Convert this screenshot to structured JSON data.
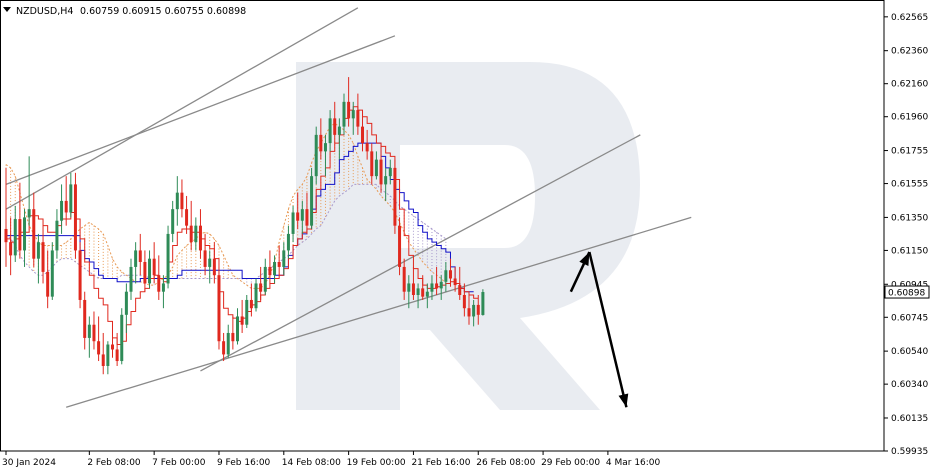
{
  "header": {
    "symbol_label": "NZDUSD,H4",
    "ohlc_label": "0.60759 0.60915 0.60755 0.60898"
  },
  "watermark": {
    "letter": "R",
    "color": "#d7dce6"
  },
  "colors": {
    "bull": "#2e8b57",
    "bear": "#e0281e",
    "tenkan": "#e0281e",
    "kijun": "#1010c8",
    "cloud_a": "#e89a55",
    "cloud_b": "#a899cc",
    "trend": "#8a8a8a",
    "arrow": "#000000",
    "price_tag_bg": "#ffffff"
  },
  "chart_data": {
    "type": "candlestick",
    "title": "NZDUSD,H4",
    "y_axis": {
      "ticks": [
        0.62565,
        0.6236,
        0.6216,
        0.6196,
        0.61755,
        0.61555,
        0.6135,
        0.6115,
        0.60945,
        0.60745,
        0.6054,
        0.6034,
        0.60135,
        0.59935
      ],
      "tick_labels": [
        "0.62565",
        "0.62360",
        "0.62160",
        "0.61960",
        "0.61755",
        "0.61555",
        "0.61350",
        "0.61150",
        "0.60945",
        "0.60745",
        "0.60540",
        "0.60340",
        "0.60135",
        "0.59935"
      ],
      "ylim": [
        0.59935,
        0.62667
      ],
      "current_price": 0.60898,
      "current_price_label": "0.60898"
    },
    "x_axis": {
      "tick_labels": [
        "30 Jan 2024",
        "2 Feb 08:00",
        "7 Feb 00:00",
        "9 Feb 16:00",
        "14 Feb 08:00",
        "19 Feb 00:00",
        "21 Feb 16:00",
        "26 Feb 08:00",
        "29 Feb 00:00",
        "4 Mar 16:00"
      ],
      "tick_bar_index": [
        0,
        18,
        32,
        46,
        60,
        74,
        88,
        102,
        116,
        130
      ]
    },
    "candles": [
      {
        "o": 0.6128,
        "h": 0.6165,
        "l": 0.6105,
        "c": 0.612
      },
      {
        "o": 0.612,
        "h": 0.6135,
        "l": 0.61,
        "c": 0.6112
      },
      {
        "o": 0.6112,
        "h": 0.6142,
        "l": 0.6108,
        "c": 0.6134
      },
      {
        "o": 0.6134,
        "h": 0.6156,
        "l": 0.611,
        "c": 0.6115
      },
      {
        "o": 0.6115,
        "h": 0.614,
        "l": 0.6105,
        "c": 0.6135
      },
      {
        "o": 0.6135,
        "h": 0.6172,
        "l": 0.613,
        "c": 0.614
      },
      {
        "o": 0.614,
        "h": 0.615,
        "l": 0.6105,
        "c": 0.611
      },
      {
        "o": 0.611,
        "h": 0.6125,
        "l": 0.6095,
        "c": 0.612
      },
      {
        "o": 0.612,
        "h": 0.613,
        "l": 0.6095,
        "c": 0.6102
      },
      {
        "o": 0.6102,
        "h": 0.6115,
        "l": 0.608,
        "c": 0.6087
      },
      {
        "o": 0.6087,
        "h": 0.612,
        "l": 0.6085,
        "c": 0.6115
      },
      {
        "o": 0.6115,
        "h": 0.614,
        "l": 0.611,
        "c": 0.6133
      },
      {
        "o": 0.6133,
        "h": 0.6155,
        "l": 0.6125,
        "c": 0.6145
      },
      {
        "o": 0.6145,
        "h": 0.616,
        "l": 0.613,
        "c": 0.6138
      },
      {
        "o": 0.6138,
        "h": 0.6162,
        "l": 0.6135,
        "c": 0.6155
      },
      {
        "o": 0.6155,
        "h": 0.6162,
        "l": 0.611,
        "c": 0.6115
      },
      {
        "o": 0.6115,
        "h": 0.612,
        "l": 0.608,
        "c": 0.6085
      },
      {
        "o": 0.6085,
        "h": 0.609,
        "l": 0.6055,
        "c": 0.6062
      },
      {
        "o": 0.6062,
        "h": 0.6075,
        "l": 0.605,
        "c": 0.607
      },
      {
        "o": 0.607,
        "h": 0.6078,
        "l": 0.6055,
        "c": 0.606
      },
      {
        "o": 0.606,
        "h": 0.6075,
        "l": 0.6048,
        "c": 0.6052
      },
      {
        "o": 0.6052,
        "h": 0.6065,
        "l": 0.604,
        "c": 0.6045
      },
      {
        "o": 0.6045,
        "h": 0.606,
        "l": 0.604,
        "c": 0.6058
      },
      {
        "o": 0.6058,
        "h": 0.607,
        "l": 0.605,
        "c": 0.6055
      },
      {
        "o": 0.6055,
        "h": 0.6065,
        "l": 0.6045,
        "c": 0.6048
      },
      {
        "o": 0.6048,
        "h": 0.608,
        "l": 0.6046,
        "c": 0.6076
      },
      {
        "o": 0.6076,
        "h": 0.6095,
        "l": 0.6065,
        "c": 0.609
      },
      {
        "o": 0.609,
        "h": 0.611,
        "l": 0.6085,
        "c": 0.6105
      },
      {
        "o": 0.6105,
        "h": 0.612,
        "l": 0.6095,
        "c": 0.6115
      },
      {
        "o": 0.6115,
        "h": 0.6125,
        "l": 0.61,
        "c": 0.6108
      },
      {
        "o": 0.6108,
        "h": 0.6115,
        "l": 0.609,
        "c": 0.6095
      },
      {
        "o": 0.6095,
        "h": 0.6115,
        "l": 0.6092,
        "c": 0.611
      },
      {
        "o": 0.611,
        "h": 0.612,
        "l": 0.6095,
        "c": 0.61
      },
      {
        "o": 0.61,
        "h": 0.6112,
        "l": 0.6085,
        "c": 0.609
      },
      {
        "o": 0.609,
        "h": 0.61,
        "l": 0.608,
        "c": 0.6095
      },
      {
        "o": 0.6095,
        "h": 0.613,
        "l": 0.6092,
        "c": 0.6125
      },
      {
        "o": 0.6125,
        "h": 0.6145,
        "l": 0.612,
        "c": 0.614
      },
      {
        "o": 0.614,
        "h": 0.616,
        "l": 0.613,
        "c": 0.615
      },
      {
        "o": 0.615,
        "h": 0.6158,
        "l": 0.6135,
        "c": 0.614
      },
      {
        "o": 0.614,
        "h": 0.6148,
        "l": 0.6125,
        "c": 0.613
      },
      {
        "o": 0.613,
        "h": 0.6145,
        "l": 0.6115,
        "c": 0.612
      },
      {
        "o": 0.612,
        "h": 0.6135,
        "l": 0.6115,
        "c": 0.613
      },
      {
        "o": 0.613,
        "h": 0.614,
        "l": 0.611,
        "c": 0.6115
      },
      {
        "o": 0.6115,
        "h": 0.6125,
        "l": 0.61,
        "c": 0.6105
      },
      {
        "o": 0.6105,
        "h": 0.6115,
        "l": 0.6095,
        "c": 0.611
      },
      {
        "o": 0.611,
        "h": 0.612,
        "l": 0.6095,
        "c": 0.61
      },
      {
        "o": 0.61,
        "h": 0.6105,
        "l": 0.6055,
        "c": 0.606
      },
      {
        "o": 0.606,
        "h": 0.6065,
        "l": 0.6048,
        "c": 0.6052
      },
      {
        "o": 0.6052,
        "h": 0.607,
        "l": 0.605,
        "c": 0.6065
      },
      {
        "o": 0.6065,
        "h": 0.6075,
        "l": 0.6055,
        "c": 0.606
      },
      {
        "o": 0.606,
        "h": 0.608,
        "l": 0.6058,
        "c": 0.6075
      },
      {
        "o": 0.6075,
        "h": 0.6085,
        "l": 0.6065,
        "c": 0.607
      },
      {
        "o": 0.607,
        "h": 0.6088,
        "l": 0.6068,
        "c": 0.6085
      },
      {
        "o": 0.6085,
        "h": 0.6095,
        "l": 0.6075,
        "c": 0.608
      },
      {
        "o": 0.608,
        "h": 0.6098,
        "l": 0.6078,
        "c": 0.6095
      },
      {
        "o": 0.6095,
        "h": 0.6105,
        "l": 0.6085,
        "c": 0.609
      },
      {
        "o": 0.609,
        "h": 0.611,
        "l": 0.6088,
        "c": 0.6105
      },
      {
        "o": 0.6105,
        "h": 0.6115,
        "l": 0.6095,
        "c": 0.61
      },
      {
        "o": 0.61,
        "h": 0.6112,
        "l": 0.6095,
        "c": 0.6108
      },
      {
        "o": 0.6108,
        "h": 0.6118,
        "l": 0.61,
        "c": 0.6105
      },
      {
        "o": 0.6105,
        "h": 0.612,
        "l": 0.61,
        "c": 0.6115
      },
      {
        "o": 0.6115,
        "h": 0.613,
        "l": 0.611,
        "c": 0.6125
      },
      {
        "o": 0.6125,
        "h": 0.6142,
        "l": 0.612,
        "c": 0.6138
      },
      {
        "o": 0.6138,
        "h": 0.615,
        "l": 0.6128,
        "c": 0.6133
      },
      {
        "o": 0.6133,
        "h": 0.6145,
        "l": 0.6125,
        "c": 0.614
      },
      {
        "o": 0.614,
        "h": 0.615,
        "l": 0.6125,
        "c": 0.613
      },
      {
        "o": 0.613,
        "h": 0.6165,
        "l": 0.6128,
        "c": 0.616
      },
      {
        "o": 0.616,
        "h": 0.619,
        "l": 0.6155,
        "c": 0.6185
      },
      {
        "o": 0.6185,
        "h": 0.6195,
        "l": 0.617,
        "c": 0.6175
      },
      {
        "o": 0.6175,
        "h": 0.6185,
        "l": 0.616,
        "c": 0.618
      },
      {
        "o": 0.618,
        "h": 0.62,
        "l": 0.6175,
        "c": 0.6195
      },
      {
        "o": 0.6195,
        "h": 0.6205,
        "l": 0.618,
        "c": 0.6185
      },
      {
        "o": 0.6185,
        "h": 0.6195,
        "l": 0.617,
        "c": 0.619
      },
      {
        "o": 0.619,
        "h": 0.621,
        "l": 0.6185,
        "c": 0.6205
      },
      {
        "o": 0.6205,
        "h": 0.622,
        "l": 0.619,
        "c": 0.6195
      },
      {
        "o": 0.6195,
        "h": 0.6205,
        "l": 0.6185,
        "c": 0.62
      },
      {
        "o": 0.62,
        "h": 0.621,
        "l": 0.6185,
        "c": 0.619
      },
      {
        "o": 0.619,
        "h": 0.62,
        "l": 0.6175,
        "c": 0.618
      },
      {
        "o": 0.618,
        "h": 0.6188,
        "l": 0.617,
        "c": 0.6175
      },
      {
        "o": 0.6175,
        "h": 0.618,
        "l": 0.6155,
        "c": 0.616
      },
      {
        "o": 0.616,
        "h": 0.6175,
        "l": 0.6158,
        "c": 0.617
      },
      {
        "o": 0.617,
        "h": 0.618,
        "l": 0.615,
        "c": 0.6155
      },
      {
        "o": 0.6155,
        "h": 0.6165,
        "l": 0.6145,
        "c": 0.616
      },
      {
        "o": 0.616,
        "h": 0.617,
        "l": 0.6155,
        "c": 0.6165
      },
      {
        "o": 0.6165,
        "h": 0.617,
        "l": 0.6125,
        "c": 0.613
      },
      {
        "o": 0.613,
        "h": 0.6135,
        "l": 0.61,
        "c": 0.6105
      },
      {
        "o": 0.6105,
        "h": 0.611,
        "l": 0.6085,
        "c": 0.609
      },
      {
        "o": 0.609,
        "h": 0.61,
        "l": 0.608,
        "c": 0.6095
      },
      {
        "o": 0.6095,
        "h": 0.6105,
        "l": 0.6085,
        "c": 0.6088
      },
      {
        "o": 0.6088,
        "h": 0.6095,
        "l": 0.608,
        "c": 0.6092
      },
      {
        "o": 0.6092,
        "h": 0.61,
        "l": 0.6085,
        "c": 0.6087
      },
      {
        "o": 0.6087,
        "h": 0.6095,
        "l": 0.608,
        "c": 0.609
      },
      {
        "o": 0.609,
        "h": 0.61,
        "l": 0.6085,
        "c": 0.6095
      },
      {
        "o": 0.6095,
        "h": 0.6105,
        "l": 0.6088,
        "c": 0.6092
      },
      {
        "o": 0.6092,
        "h": 0.61,
        "l": 0.6085,
        "c": 0.6096
      },
      {
        "o": 0.6096,
        "h": 0.6108,
        "l": 0.609,
        "c": 0.6103
      },
      {
        "o": 0.6103,
        "h": 0.611,
        "l": 0.6093,
        "c": 0.6098
      },
      {
        "o": 0.6098,
        "h": 0.6105,
        "l": 0.609,
        "c": 0.6094
      },
      {
        "o": 0.6094,
        "h": 0.6105,
        "l": 0.6085,
        "c": 0.6088
      },
      {
        "o": 0.6088,
        "h": 0.6095,
        "l": 0.6075,
        "c": 0.608
      },
      {
        "o": 0.608,
        "h": 0.609,
        "l": 0.607,
        "c": 0.6075
      },
      {
        "o": 0.6075,
        "h": 0.6085,
        "l": 0.6069,
        "c": 0.6082
      },
      {
        "o": 0.6082,
        "h": 0.6088,
        "l": 0.607,
        "c": 0.6076
      },
      {
        "o": 0.60759,
        "h": 0.60915,
        "l": 0.60755,
        "c": 0.60898
      }
    ],
    "tenkan": [
      0.6122,
      0.612,
      0.6122,
      0.6126,
      0.6126,
      0.6136,
      0.6136,
      0.6134,
      0.613,
      0.6126,
      0.6126,
      0.613,
      0.6134,
      0.6134,
      0.6138,
      0.6134,
      0.6122,
      0.6108,
      0.61,
      0.6092,
      0.6086,
      0.6082,
      0.6072,
      0.6062,
      0.6058,
      0.606,
      0.607,
      0.6078,
      0.6086,
      0.609,
      0.6092,
      0.6098,
      0.61,
      0.6098,
      0.6096,
      0.6108,
      0.6118,
      0.6126,
      0.6128,
      0.6128,
      0.6126,
      0.6126,
      0.6122,
      0.6118,
      0.6116,
      0.611,
      0.609,
      0.608,
      0.6076,
      0.6074,
      0.6072,
      0.6074,
      0.6078,
      0.6082,
      0.6084,
      0.6088,
      0.6092,
      0.6095,
      0.6098,
      0.61,
      0.6104,
      0.611,
      0.6118,
      0.6122,
      0.6126,
      0.6128,
      0.6138,
      0.6152,
      0.616,
      0.6165,
      0.6175,
      0.618,
      0.6185,
      0.6195,
      0.62,
      0.6202,
      0.62,
      0.6196,
      0.6192,
      0.6185,
      0.618,
      0.6178,
      0.6174,
      0.6172,
      0.6158,
      0.614,
      0.6124,
      0.6112,
      0.6104,
      0.6098,
      0.6094,
      0.6092,
      0.6092,
      0.6093,
      0.6094,
      0.6095,
      0.6096,
      0.6095,
      0.6092,
      0.609,
      0.6088,
      0.6086,
      0.6086
    ],
    "kijun": [
      0.6124,
      0.6124,
      0.6124,
      0.6124,
      0.6124,
      0.6124,
      0.6124,
      0.6124,
      0.6124,
      0.6124,
      0.6124,
      0.6124,
      0.6124,
      0.6124,
      0.6124,
      0.6124,
      0.6115,
      0.611,
      0.6108,
      0.6104,
      0.61,
      0.6098,
      0.6098,
      0.6098,
      0.6096,
      0.6096,
      0.6096,
      0.6096,
      0.6096,
      0.6098,
      0.6098,
      0.6098,
      0.6098,
      0.6098,
      0.6098,
      0.6098,
      0.6098,
      0.61,
      0.6103,
      0.6103,
      0.6103,
      0.6103,
      0.6103,
      0.6103,
      0.6103,
      0.6103,
      0.6103,
      0.6103,
      0.6103,
      0.6103,
      0.6103,
      0.6098,
      0.6098,
      0.6098,
      0.6098,
      0.6098,
      0.6098,
      0.6098,
      0.61,
      0.61,
      0.6105,
      0.6112,
      0.6118,
      0.6122,
      0.6125,
      0.6128,
      0.614,
      0.6148,
      0.6152,
      0.6155,
      0.6155,
      0.6162,
      0.617,
      0.6172,
      0.6175,
      0.6178,
      0.618,
      0.618,
      0.618,
      0.618,
      0.618,
      0.6172,
      0.6165,
      0.6158,
      0.6152,
      0.615,
      0.6145,
      0.614,
      0.6138,
      0.613,
      0.6126,
      0.6122,
      0.612,
      0.6118,
      0.6116,
      0.6114,
      0.6105,
      0.6095,
      0.6092,
      0.609,
      0.609,
      0.609
    ],
    "cloud": {
      "x_start": 0,
      "span_a": [
        0.6167,
        0.6165,
        0.616,
        0.615,
        0.614,
        0.613,
        0.6125,
        0.612,
        0.6118,
        0.6118,
        0.6118,
        0.6118,
        0.6118,
        0.612,
        0.6122,
        0.6125,
        0.6128,
        0.613,
        0.6132,
        0.613,
        0.6128,
        0.6125,
        0.6118,
        0.611,
        0.6105,
        0.6102,
        0.61,
        0.6098,
        0.6096,
        0.6096,
        0.6095,
        0.6094,
        0.6094,
        0.6096,
        0.6098,
        0.61,
        0.6105,
        0.6112,
        0.6115,
        0.6118,
        0.612,
        0.6122,
        0.6125,
        0.6126,
        0.6125,
        0.6122,
        0.6118,
        0.6112,
        0.6106,
        0.61,
        0.6098,
        0.6096,
        0.6094,
        0.6092,
        0.6092,
        0.6092,
        0.6095,
        0.61,
        0.6108,
        0.612,
        0.613,
        0.614,
        0.6148,
        0.6152,
        0.6155,
        0.616,
        0.6168,
        0.6175,
        0.618,
        0.6185,
        0.619,
        0.6192,
        0.619,
        0.6188,
        0.6185,
        0.618,
        0.6172,
        0.6165,
        0.6158,
        0.6155,
        0.6152,
        0.6148,
        0.6145,
        0.6142,
        0.6138,
        0.6132,
        0.6126,
        0.612,
        0.6116,
        0.6112,
        0.6108,
        0.6105,
        0.6102,
        0.61,
        0.6098,
        0.6095
      ],
      "span_b": [
        0.6125,
        0.6122,
        0.6118,
        0.6112,
        0.6108,
        0.6105,
        0.6102,
        0.61,
        0.61,
        0.6102,
        0.6105,
        0.6108,
        0.611,
        0.611,
        0.611,
        0.6108,
        0.6106,
        0.6104,
        0.6102,
        0.61,
        0.6098,
        0.6098,
        0.6098,
        0.6098,
        0.6098,
        0.61,
        0.61,
        0.61,
        0.61,
        0.61,
        0.61,
        0.6098,
        0.6098,
        0.6098,
        0.6098,
        0.6098,
        0.6098,
        0.6098,
        0.6098,
        0.6098,
        0.6098,
        0.6098,
        0.6098,
        0.6098,
        0.6098,
        0.6098,
        0.6098,
        0.6098,
        0.6098,
        0.6098,
        0.6098,
        0.6098,
        0.6098,
        0.6098,
        0.6098,
        0.61,
        0.6102,
        0.6104,
        0.6106,
        0.6108,
        0.611,
        0.6112,
        0.6115,
        0.6118,
        0.612,
        0.6122,
        0.6125,
        0.6128,
        0.613,
        0.6135,
        0.614,
        0.6145,
        0.6148,
        0.615,
        0.6152,
        0.6155,
        0.6155,
        0.6155,
        0.6155,
        0.6155,
        0.6155,
        0.6152,
        0.615,
        0.6148,
        0.6145,
        0.6142,
        0.614,
        0.6138,
        0.6136,
        0.6134,
        0.6132,
        0.613,
        0.6128,
        0.6126,
        0.6124,
        0.6122
      ]
    },
    "trendlines": [
      {
        "x1": 0,
        "y1": 0.6155,
        "x2": 84,
        "y2": 0.6245
      },
      {
        "x1": 0,
        "y1": 0.614,
        "x2": 76,
        "y2": 0.6262
      },
      {
        "x1": 42,
        "y1": 0.6042,
        "x2": 137,
        "y2": 0.6185
      },
      {
        "x1": 13,
        "y1": 0.602,
        "x2": 148,
        "y2": 0.6135
      }
    ],
    "forecast_arrows": [
      {
        "x1": 122,
        "y1": 0.609,
        "x2": 126,
        "y2": 0.6114
      },
      {
        "x1": 126,
        "y1": 0.6114,
        "x2": 134,
        "y2": 0.602
      }
    ]
  }
}
